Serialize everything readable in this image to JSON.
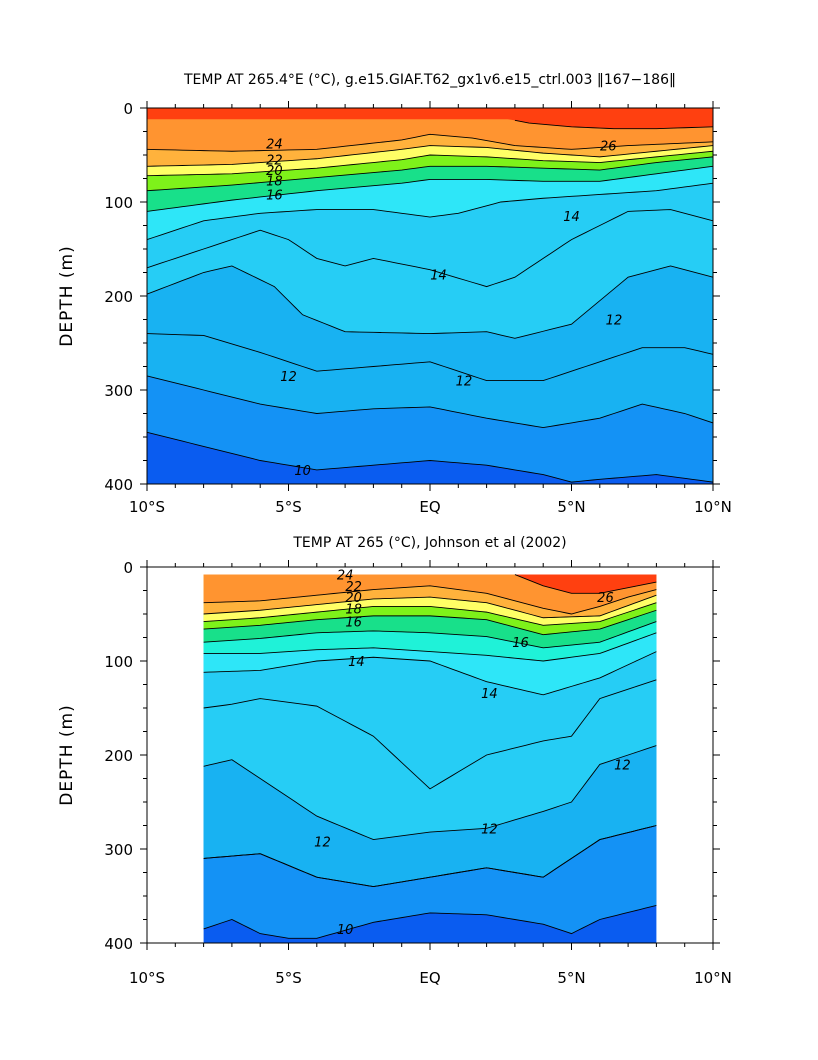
{
  "chart_data": [
    {
      "type": "contour",
      "title": "TEMP AT 265.4°E (°C), g.e15.GIAF.T62_gx1v6.e15_ctrl.003 ‖167−186‖",
      "xlabel": "",
      "ylabel": "DEPTH (m)",
      "xlim": [
        -10,
        10
      ],
      "ylim": [
        400,
        0
      ],
      "x_ticks": [
        "10°S",
        "5°S",
        "EQ",
        "5°N",
        "10°N"
      ],
      "x_tick_values": [
        -10,
        -5,
        0,
        5,
        10
      ],
      "y_ticks": [
        "0",
        "100",
        "200",
        "300",
        "400"
      ],
      "y_tick_values": [
        0,
        100,
        200,
        300,
        400
      ],
      "data_extent": [
        -10,
        10
      ],
      "contour_levels": [
        10,
        11,
        12,
        13,
        14,
        15,
        16,
        17,
        18,
        19,
        20,
        21,
        22,
        24,
        26
      ],
      "isotherms": [
        {
          "level": 26,
          "lat": [
            2.8,
            3.5,
            5,
            6.5,
            8,
            10
          ],
          "depth": [
            12,
            16,
            20,
            22,
            22,
            20
          ],
          "label": "26",
          "label_at": [
            6.3,
            40
          ]
        },
        {
          "level": 24,
          "lat": [
            -10,
            -7,
            -4,
            -1,
            0,
            1.5,
            3,
            5,
            7,
            10
          ],
          "depth": [
            44,
            46,
            44,
            34,
            28,
            32,
            40,
            44,
            40,
            36
          ],
          "label": "24",
          "label_at": [
            -5.5,
            38
          ]
        },
        {
          "level": 22,
          "lat": [
            -10,
            -7,
            -4,
            -1,
            0,
            2,
            4,
            6,
            8,
            10
          ],
          "depth": [
            62,
            60,
            54,
            44,
            40,
            42,
            48,
            52,
            46,
            40
          ],
          "label": "22",
          "label_at": [
            -5.5,
            55
          ]
        },
        {
          "level": 20,
          "lat": [
            -10,
            -7,
            -4,
            -1,
            0,
            2,
            4,
            6,
            8,
            10
          ],
          "depth": [
            72,
            70,
            64,
            55,
            50,
            52,
            56,
            58,
            52,
            46
          ],
          "label": "20",
          "label_at": [
            -5.5,
            66
          ]
        },
        {
          "level": 18,
          "lat": [
            -10,
            -7,
            -4,
            -1,
            0,
            2,
            4,
            6,
            8,
            10
          ],
          "depth": [
            88,
            82,
            74,
            66,
            62,
            62,
            64,
            66,
            58,
            52
          ],
          "label": "18",
          "label_at": [
            -5.5,
            77
          ]
        },
        {
          "level": 16,
          "lat": [
            -10,
            -7,
            -4,
            -1,
            0,
            2,
            4,
            6,
            8,
            10
          ],
          "depth": [
            110,
            98,
            88,
            80,
            76,
            76,
            78,
            78,
            70,
            62
          ],
          "label": "16",
          "label_at": [
            -5.5,
            92
          ]
        },
        {
          "level": 14,
          "lat": [
            -10,
            -8,
            -6,
            -4,
            -2,
            0,
            1,
            2.5,
            4,
            6,
            8,
            10
          ],
          "depth": [
            140,
            120,
            112,
            108,
            108,
            116,
            112,
            100,
            96,
            92,
            88,
            80
          ],
          "label": "14",
          "label_at": [
            5,
            115
          ]
        },
        {
          "level": 13,
          "lat": [
            -10,
            -8,
            -6,
            -5,
            -4,
            -3,
            -2,
            0,
            2,
            3,
            5,
            7,
            8.5,
            10
          ],
          "depth": [
            170,
            150,
            130,
            140,
            160,
            168,
            160,
            172,
            190,
            180,
            140,
            110,
            108,
            120
          ],
          "label": "14",
          "label_at": [
            0.3,
            177
          ]
        },
        {
          "level": 12.5,
          "lat": [
            -10,
            -8,
            -7,
            -5.5,
            -4.5,
            -3,
            0,
            2,
            3,
            5,
            7,
            8.5,
            10
          ],
          "depth": [
            198,
            175,
            168,
            190,
            220,
            238,
            240,
            238,
            245,
            230,
            180,
            168,
            180
          ],
          "label": "12",
          "label_at": [
            6.5,
            225
          ]
        },
        {
          "level": 12,
          "lat": [
            -10,
            -8,
            -6,
            -4,
            -2,
            0,
            2,
            4,
            6,
            7.5,
            9,
            10
          ],
          "depth": [
            240,
            242,
            260,
            280,
            275,
            270,
            290,
            290,
            270,
            255,
            255,
            262
          ],
          "label": "12",
          "label_at": [
            -5,
            285
          ]
        },
        {
          "level": 11.5,
          "lat": [
            -10,
            -8,
            -6,
            -4,
            -2,
            0,
            2,
            4,
            6,
            7.5,
            9,
            10
          ],
          "depth": [
            285,
            300,
            315,
            325,
            320,
            318,
            330,
            340,
            330,
            315,
            325,
            335
          ],
          "label": "12",
          "label_at": [
            1.2,
            290
          ]
        },
        {
          "level": 11,
          "lat": [
            -10,
            -8,
            -6,
            -4,
            -2,
            0,
            2,
            4,
            5,
            6,
            8,
            10
          ],
          "depth": [
            345,
            360,
            375,
            385,
            380,
            375,
            380,
            390,
            398,
            395,
            390,
            398
          ],
          "label": "10",
          "label_at": [
            -4.5,
            385
          ]
        }
      ],
      "contour_labels": [
        "24",
        "22",
        "20",
        "18",
        "16",
        "14",
        "12",
        "10",
        "26"
      ]
    },
    {
      "type": "contour",
      "title": "TEMP AT 265 (°C), Johnson et al (2002)",
      "xlabel": "",
      "ylabel": "DEPTH (m)",
      "xlim": [
        -10,
        10
      ],
      "ylim": [
        400,
        0
      ],
      "x_ticks": [
        "10°S",
        "5°S",
        "EQ",
        "5°N",
        "10°N"
      ],
      "x_tick_values": [
        -10,
        -5,
        0,
        5,
        10
      ],
      "y_ticks": [
        "0",
        "100",
        "200",
        "300",
        "400"
      ],
      "y_tick_values": [
        0,
        100,
        200,
        300,
        400
      ],
      "data_extent": [
        -8,
        8
      ],
      "contour_levels": [
        10,
        11,
        12,
        13,
        14,
        15,
        16,
        17,
        18,
        19,
        20,
        21,
        22,
        24,
        26
      ],
      "isotherms": [
        {
          "level": 26,
          "lat": [
            3,
            4,
            5,
            6,
            7,
            8
          ],
          "depth": [
            8,
            20,
            28,
            28,
            22,
            16
          ],
          "label": "26",
          "label_at": [
            6.2,
            32
          ]
        },
        {
          "level": 24,
          "lat": [
            -8,
            -6,
            -4,
            -2,
            0,
            2,
            4,
            5,
            6,
            7,
            8
          ],
          "depth": [
            38,
            36,
            30,
            24,
            20,
            28,
            44,
            50,
            42,
            32,
            24
          ],
          "label": "24",
          "label_at": [
            -3,
            8
          ]
        },
        {
          "level": 22,
          "lat": [
            -8,
            -6,
            -4,
            -2,
            0,
            2,
            4,
            6,
            8
          ],
          "depth": [
            50,
            46,
            40,
            34,
            32,
            38,
            54,
            52,
            30
          ],
          "label": "22",
          "label_at": [
            -2.7,
            20
          ]
        },
        {
          "level": 20,
          "lat": [
            -8,
            -6,
            -4,
            -2,
            0,
            2,
            4,
            6,
            8
          ],
          "depth": [
            58,
            54,
            48,
            42,
            42,
            48,
            62,
            58,
            38
          ],
          "label": "20",
          "label_at": [
            -2.7,
            32
          ]
        },
        {
          "level": 18,
          "lat": [
            -8,
            -6,
            -4,
            -2,
            0,
            2,
            4,
            6,
            8
          ],
          "depth": [
            66,
            62,
            56,
            52,
            52,
            56,
            72,
            66,
            46
          ],
          "label": "18",
          "label_at": [
            -2.7,
            44
          ]
        },
        {
          "level": 16,
          "lat": [
            -8,
            -6,
            -4,
            -2,
            0,
            2,
            4,
            6,
            8
          ],
          "depth": [
            80,
            76,
            70,
            68,
            70,
            74,
            86,
            80,
            58
          ],
          "label": "16",
          "label_at": [
            -2.7,
            58
          ]
        },
        {
          "level": 14.5,
          "lat": [
            -8,
            -6,
            -4,
            -2,
            0,
            2,
            4,
            6,
            8
          ],
          "depth": [
            92,
            92,
            88,
            86,
            90,
            94,
            100,
            92,
            70
          ],
          "label": "16",
          "label_at": [
            3.2,
            80
          ]
        },
        {
          "level": 14,
          "lat": [
            -8,
            -6,
            -4,
            -2,
            0,
            2,
            4,
            6,
            8
          ],
          "depth": [
            112,
            110,
            100,
            96,
            100,
            122,
            136,
            118,
            90
          ],
          "label": "14",
          "label_at": [
            -2.6,
            100
          ]
        },
        {
          "level": 13,
          "lat": [
            -8,
            -7,
            -6,
            -4,
            -2,
            0,
            2,
            4,
            5,
            6,
            8
          ],
          "depth": [
            150,
            146,
            140,
            148,
            180,
            236,
            200,
            185,
            180,
            140,
            120
          ],
          "label": "14",
          "label_at": [
            2.1,
            134
          ]
        },
        {
          "level": 12.5,
          "lat": [
            -8,
            -7,
            -6,
            -4,
            -2,
            0,
            2,
            4,
            5,
            6,
            8
          ],
          "depth": [
            212,
            205,
            225,
            265,
            290,
            282,
            278,
            260,
            250,
            210,
            190
          ],
          "label": "12",
          "label_at": [
            6.8,
            210
          ]
        },
        {
          "level": 12,
          "lat": [
            -8,
            -6,
            -4,
            -2,
            0,
            2,
            4,
            6,
            8
          ],
          "depth": [
            310,
            305,
            330,
            340,
            330,
            320,
            330,
            290,
            275
          ],
          "label": "12",
          "label_at": [
            -3.8,
            292
          ]
        },
        {
          "level": 11.5,
          "lat": [
            -8,
            -6,
            -4,
            -2,
            0,
            2,
            4,
            6,
            8
          ],
          "depth": [
            310,
            305,
            330,
            340,
            330,
            320,
            330,
            290,
            275
          ],
          "label": "12",
          "label_at": [
            2.1,
            278
          ]
        },
        {
          "level": 11,
          "lat": [
            -8,
            -7,
            -6,
            -5,
            -4,
            -2,
            0,
            2,
            4,
            5,
            6,
            8
          ],
          "depth": [
            385,
            375,
            390,
            395,
            395,
            378,
            368,
            370,
            380,
            390,
            375,
            360
          ],
          "label": "10",
          "label_at": [
            -3,
            385
          ]
        }
      ],
      "contour_labels": [
        "24",
        "22",
        "20",
        "18",
        "16",
        "14",
        "12",
        "10",
        "26"
      ]
    }
  ]
}
